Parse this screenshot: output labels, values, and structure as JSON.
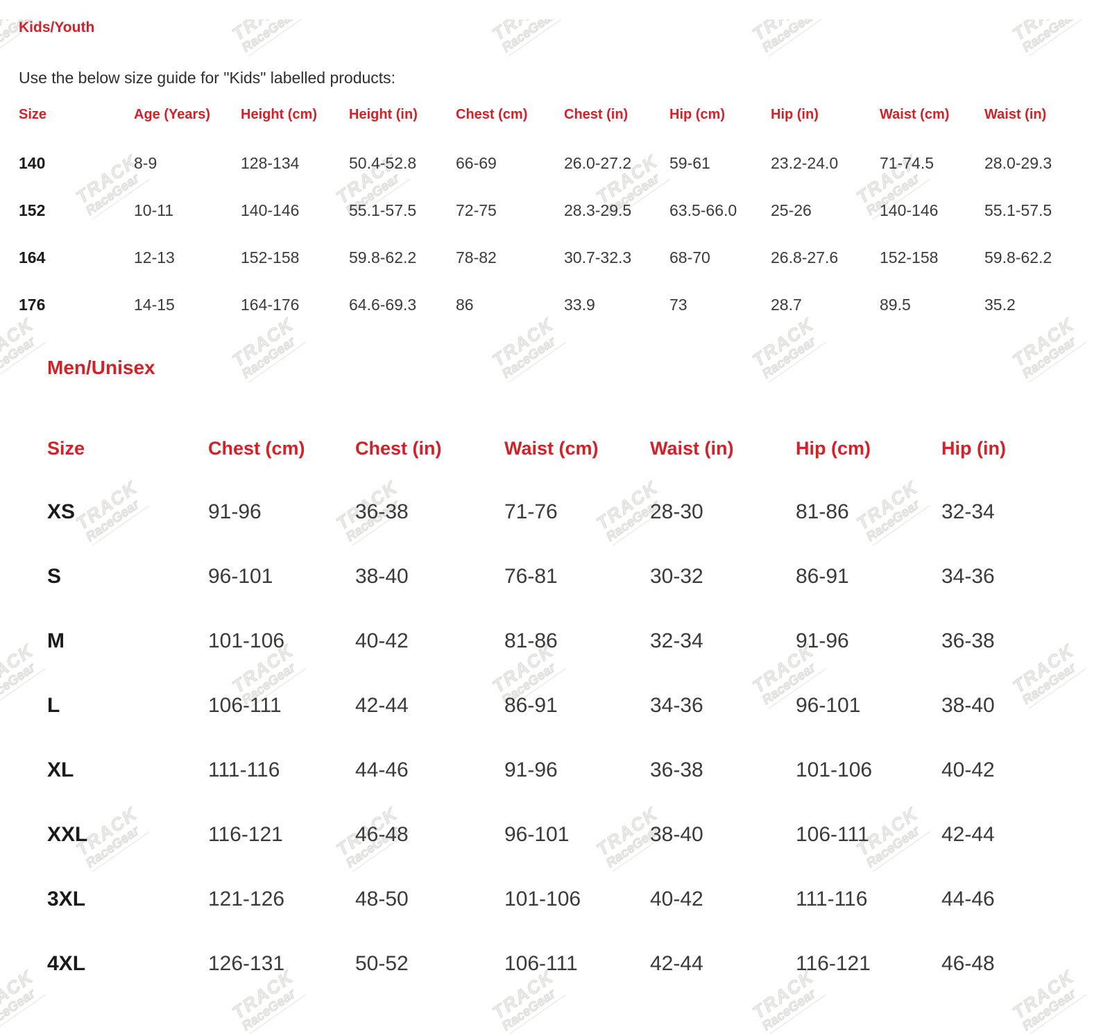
{
  "colors": {
    "accent_red": "#d42128",
    "text_dark": "#3a3a3a"
  },
  "watermark": {
    "line1": "TRACK",
    "line2": "RaceGear"
  },
  "kids_section": {
    "title": "Kids/Youth",
    "intro": "Use the below size guide for \"Kids\" labelled products:",
    "table": {
      "headers": [
        "Size",
        "Age (Years)",
        "Height (cm)",
        "Height (in)",
        "Chest (cm)",
        "Chest (in)",
        "Hip (cm)",
        "Hip (in)",
        "Waist (cm)",
        "Waist (in)"
      ],
      "rows": [
        [
          "140",
          "8-9",
          "128-134",
          "50.4-52.8",
          "66-69",
          "26.0-27.2",
          "59-61",
          "23.2-24.0",
          "71-74.5",
          "28.0-29.3"
        ],
        [
          "152",
          "10-11",
          "140-146",
          "55.1-57.5",
          "72-75",
          "28.3-29.5",
          "63.5-66.0",
          "25-26",
          "140-146",
          "55.1-57.5"
        ],
        [
          "164",
          "12-13",
          "152-158",
          "59.8-62.2",
          "78-82",
          "30.7-32.3",
          "68-70",
          "26.8-27.6",
          "152-158",
          "59.8-62.2"
        ],
        [
          "176",
          "14-15",
          "164-176",
          "64.6-69.3",
          "86",
          "33.9",
          "73",
          "28.7",
          "89.5",
          "35.2"
        ]
      ]
    }
  },
  "men_section": {
    "title": "Men/Unisex",
    "table": {
      "headers": [
        "Size",
        "Chest (cm)",
        "Chest (in)",
        "Waist (cm)",
        "Waist (in)",
        "Hip (cm)",
        "Hip (in)"
      ],
      "rows": [
        [
          "XS",
          "91-96",
          "36-38",
          "71-76",
          "28-30",
          "81-86",
          "32-34"
        ],
        [
          "S",
          "96-101",
          "38-40",
          "76-81",
          "30-32",
          "86-91",
          "34-36"
        ],
        [
          "M",
          "101-106",
          "40-42",
          "81-86",
          "32-34",
          "91-96",
          "36-38"
        ],
        [
          "L",
          "106-111",
          "42-44",
          "86-91",
          "34-36",
          "96-101",
          "38-40"
        ],
        [
          "XL",
          "111-116",
          "44-46",
          "91-96",
          "36-38",
          "101-106",
          "40-42"
        ],
        [
          "XXL",
          "116-121",
          "46-48",
          "96-101",
          "38-40",
          "106-111",
          "42-44"
        ],
        [
          "3XL",
          "121-126",
          "48-50",
          "101-106",
          "40-42",
          "111-116",
          "44-46"
        ],
        [
          "4XL",
          "126-131",
          "50-52",
          "106-111",
          "42-44",
          "116-121",
          "46-48"
        ]
      ]
    }
  }
}
